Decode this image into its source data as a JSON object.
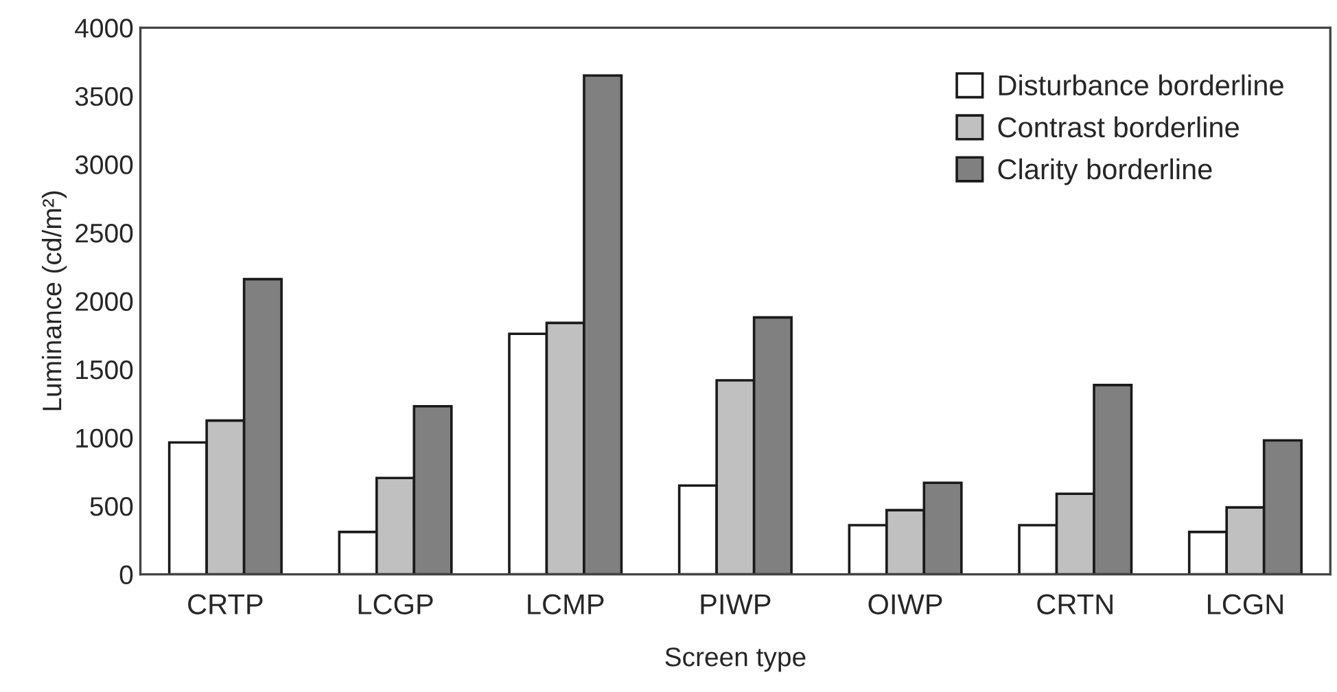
{
  "chart_data": {
    "type": "bar",
    "xlabel": "Screen type",
    "ylabel": "Luminance (cd/m²)",
    "categories": [
      "CRTP",
      "LCGP",
      "LCMP",
      "PIWP",
      "OIWP",
      "CRTN",
      "LCGN"
    ],
    "series": [
      {
        "name": "Disturbance borderline",
        "color": "#ffffff",
        "values": [
          965,
          310,
          1760,
          650,
          360,
          360,
          310
        ]
      },
      {
        "name": "Contrast borderline",
        "color": "#c0c0c0",
        "values": [
          1125,
          705,
          1840,
          1420,
          470,
          590,
          490
        ]
      },
      {
        "name": "Clarity borderline",
        "color": "#808080",
        "values": [
          2160,
          1230,
          3650,
          1880,
          670,
          1385,
          980
        ]
      }
    ],
    "ylim": [
      0,
      4000
    ],
    "yticks": [
      0,
      500,
      1000,
      1500,
      2000,
      2500,
      3000,
      3500,
      4000
    ],
    "grid": false,
    "legend": "top right"
  }
}
